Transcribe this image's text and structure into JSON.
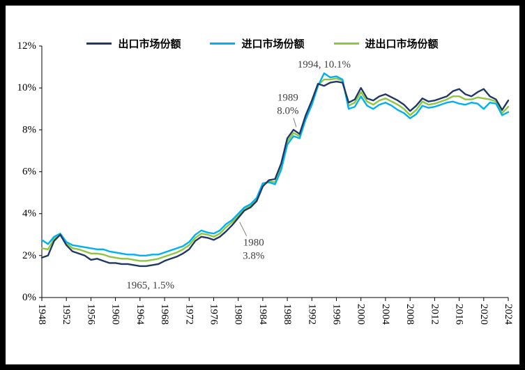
{
  "colors": {
    "background": "#000000",
    "panel": "#FFFFFF",
    "axis": "#000000",
    "annotation_text": "#404040",
    "leader_line": "#7F7F7F"
  },
  "chart_data": {
    "type": "line",
    "title": "",
    "xlabel": "",
    "ylabel": "",
    "grid": false,
    "legend_position": "top-center",
    "ylim": [
      0,
      12
    ],
    "y_ticks": [
      "0%",
      "2%",
      "4%",
      "6%",
      "8%",
      "10%",
      "12%"
    ],
    "x_tick_interval": 4,
    "x_tick_labels": [
      "1948",
      "1952",
      "1956",
      "1960",
      "1964",
      "1968",
      "1972",
      "1976",
      "1980",
      "1984",
      "1988",
      "1992",
      "1996",
      "2000",
      "2004",
      "2008",
      "2012",
      "2016",
      "2020",
      "2024"
    ],
    "x": [
      1948,
      1949,
      1950,
      1951,
      1952,
      1953,
      1954,
      1955,
      1956,
      1957,
      1958,
      1959,
      1960,
      1961,
      1962,
      1963,
      1964,
      1965,
      1966,
      1967,
      1968,
      1969,
      1970,
      1971,
      1972,
      1973,
      1974,
      1975,
      1976,
      1977,
      1978,
      1979,
      1980,
      1981,
      1982,
      1983,
      1984,
      1985,
      1986,
      1987,
      1988,
      1989,
      1990,
      1991,
      1992,
      1993,
      1994,
      1995,
      1996,
      1997,
      1998,
      1999,
      2000,
      2001,
      2002,
      2003,
      2004,
      2005,
      2006,
      2007,
      2008,
      2009,
      2010,
      2011,
      2012,
      2013,
      2014,
      2015,
      2016,
      2017,
      2018,
      2019,
      2020,
      2021,
      2022,
      2023,
      2024
    ],
    "series": [
      {
        "id": "export",
        "name": "出口市场份额",
        "color": "#1F3864",
        "values": [
          1.9,
          2.0,
          2.7,
          3.0,
          2.5,
          2.2,
          2.1,
          2.0,
          1.8,
          1.85,
          1.75,
          1.65,
          1.65,
          1.6,
          1.6,
          1.55,
          1.5,
          1.5,
          1.55,
          1.6,
          1.75,
          1.85,
          1.95,
          2.1,
          2.3,
          2.7,
          2.9,
          2.85,
          2.75,
          2.9,
          3.15,
          3.45,
          3.8,
          4.15,
          4.3,
          4.6,
          5.3,
          5.6,
          5.65,
          6.4,
          7.6,
          8.0,
          7.8,
          8.7,
          9.4,
          10.2,
          10.1,
          10.25,
          10.3,
          10.25,
          9.3,
          9.45,
          10.0,
          9.5,
          9.4,
          9.6,
          9.7,
          9.55,
          9.4,
          9.2,
          8.9,
          9.15,
          9.5,
          9.35,
          9.4,
          9.5,
          9.6,
          9.85,
          9.95,
          9.7,
          9.6,
          9.8,
          9.95,
          9.6,
          9.45,
          8.95,
          9.4
        ]
      },
      {
        "id": "import",
        "name": "进口市场份额",
        "color": "#00B0F0",
        "values": [
          2.75,
          2.55,
          2.9,
          3.05,
          2.65,
          2.5,
          2.45,
          2.4,
          2.35,
          2.3,
          2.3,
          2.2,
          2.15,
          2.1,
          2.05,
          2.05,
          2.0,
          2.0,
          2.05,
          2.05,
          2.15,
          2.25,
          2.35,
          2.45,
          2.65,
          3.0,
          3.2,
          3.1,
          3.05,
          3.2,
          3.5,
          3.7,
          4.0,
          4.3,
          4.45,
          4.75,
          5.45,
          5.5,
          5.4,
          6.1,
          7.3,
          7.7,
          7.6,
          8.5,
          9.2,
          10.1,
          10.7,
          10.5,
          10.55,
          10.4,
          9.0,
          9.1,
          9.6,
          9.15,
          9.0,
          9.2,
          9.3,
          9.15,
          8.95,
          8.8,
          8.55,
          8.75,
          9.15,
          9.05,
          9.1,
          9.2,
          9.3,
          9.35,
          9.25,
          9.2,
          9.3,
          9.25,
          9.0,
          9.3,
          9.25,
          8.7,
          8.85
        ]
      },
      {
        "id": "total",
        "name": "进出口市场份额",
        "color": "#8DC63F",
        "values": [
          2.35,
          2.3,
          2.8,
          3.0,
          2.6,
          2.35,
          2.3,
          2.2,
          2.1,
          2.1,
          2.05,
          1.95,
          1.9,
          1.85,
          1.85,
          1.8,
          1.75,
          1.75,
          1.8,
          1.85,
          1.95,
          2.05,
          2.15,
          2.3,
          2.5,
          2.85,
          3.05,
          3.0,
          2.9,
          3.05,
          3.35,
          3.6,
          3.9,
          4.2,
          4.4,
          4.7,
          5.4,
          5.55,
          5.5,
          6.25,
          7.45,
          7.85,
          7.7,
          8.6,
          9.3,
          10.15,
          10.4,
          10.4,
          10.45,
          10.35,
          9.15,
          9.3,
          9.8,
          9.35,
          9.2,
          9.4,
          9.5,
          9.35,
          9.2,
          9.0,
          8.7,
          8.95,
          9.35,
          9.2,
          9.25,
          9.35,
          9.45,
          9.6,
          9.6,
          9.45,
          9.45,
          9.55,
          9.5,
          9.45,
          9.35,
          8.8,
          9.1
        ]
      }
    ],
    "annotations": [
      {
        "year": 1994,
        "value": 10.1,
        "lines": [
          "1994, 10.1%"
        ]
      },
      {
        "year": 1989,
        "value": 8.0,
        "lines": [
          "1989",
          "8.0%"
        ]
      },
      {
        "year": 1980,
        "value": 3.8,
        "lines": [
          "1980",
          "3.8%"
        ]
      },
      {
        "year": 1965,
        "value": 1.5,
        "lines": [
          "1965, 1.5%"
        ]
      }
    ]
  }
}
